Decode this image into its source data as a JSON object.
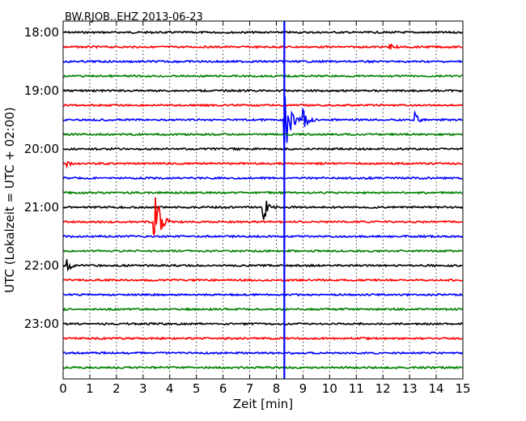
{
  "chart_data": {
    "type": "line",
    "title": "BW.RJOB..EHZ 2013-06-23",
    "xlabel": "Zeit  [min]",
    "ylabel": "UTC (Lokalzeit = UTC + 02:00)",
    "xlim": [
      0,
      15
    ],
    "x_ticks": [
      "0",
      "1",
      "2",
      "3",
      "4",
      "5",
      "6",
      "7",
      "8",
      "9",
      "10",
      "11",
      "12",
      "13",
      "14",
      "15"
    ],
    "y_tick_labels": [
      "18:00",
      "19:00",
      "20:00",
      "21:00",
      "22:00",
      "23:00"
    ],
    "traces_per_hour": 4,
    "start_time": "18:00",
    "trace_count": 24,
    "trace_colors": [
      "#000000",
      "#ff0000",
      "#0000ff",
      "#008000"
    ],
    "grid": "vertical dotted at each minute",
    "event_marker": {
      "minute": 8.3,
      "color": "#0000ff"
    },
    "events": [
      {
        "trace": 6,
        "minute": 8.3,
        "amplitude": 0.85
      },
      {
        "trace": 6,
        "minute": 9.0,
        "amplitude": 0.2
      },
      {
        "trace": 6,
        "minute": 13.2,
        "amplitude": 0.15
      },
      {
        "trace": 13,
        "minute": 3.4,
        "amplitude": 0.95
      },
      {
        "trace": 12,
        "minute": 7.5,
        "amplitude": 0.3
      },
      {
        "trace": 1,
        "minute": 12.2,
        "amplitude": 0.1
      },
      {
        "trace": 9,
        "minute": 0.1,
        "amplitude": 0.1
      },
      {
        "trace": 16,
        "minute": 0.15,
        "amplitude": 0.15
      }
    ]
  }
}
